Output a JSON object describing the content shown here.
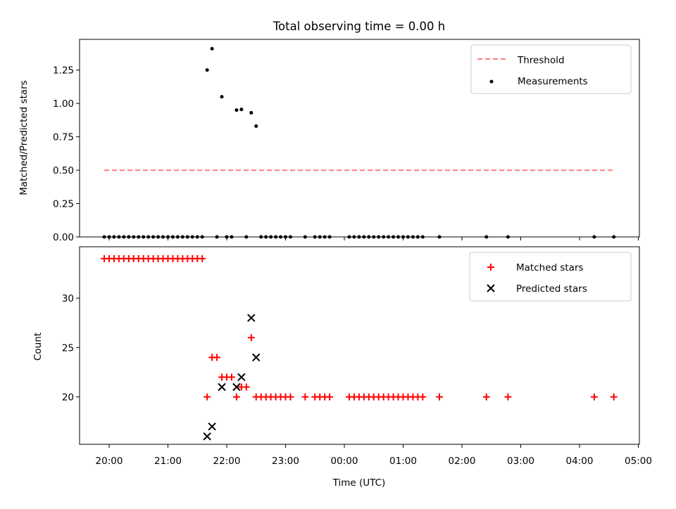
{
  "chart_data": [
    {
      "type": "scatter",
      "title": "Total observing time = 0.00 h",
      "xlabel": "",
      "ylabel": "Matched/Predicted stars",
      "ylim": [
        0,
        1.48
      ],
      "y_ticks": [
        "0.00",
        "0.25",
        "0.50",
        "0.75",
        "1.00",
        "1.25"
      ],
      "legend_position": "top-right",
      "threshold": {
        "name": "Threshold",
        "value": 0.5,
        "x_range": [
          "19:55",
          "04:35"
        ],
        "color": "#ff7f7f"
      },
      "series": [
        {
          "name": "Measurements",
          "color": "#000000",
          "points": [
            [
              "19:55",
              0
            ],
            [
              "20:00",
              0
            ],
            [
              "20:05",
              0
            ],
            [
              "20:10",
              0
            ],
            [
              "20:15",
              0
            ],
            [
              "20:20",
              0
            ],
            [
              "20:25",
              0
            ],
            [
              "20:30",
              0
            ],
            [
              "20:35",
              0
            ],
            [
              "20:40",
              0
            ],
            [
              "20:45",
              0
            ],
            [
              "20:50",
              0
            ],
            [
              "20:55",
              0
            ],
            [
              "21:00",
              0
            ],
            [
              "21:05",
              0
            ],
            [
              "21:10",
              0
            ],
            [
              "21:15",
              0
            ],
            [
              "21:20",
              0
            ],
            [
              "21:25",
              0
            ],
            [
              "21:30",
              0
            ],
            [
              "21:35",
              0
            ],
            [
              "21:40",
              1.25
            ],
            [
              "21:45",
              1.41
            ],
            [
              "21:50",
              0
            ],
            [
              "21:55",
              1.05
            ],
            [
              "22:00",
              0
            ],
            [
              "22:05",
              0
            ],
            [
              "22:10",
              0.95
            ],
            [
              "22:15",
              0.955
            ],
            [
              "22:20",
              0
            ],
            [
              "22:25",
              0.93
            ],
            [
              "22:30",
              0.83
            ],
            [
              "22:35",
              0
            ],
            [
              "22:40",
              0
            ],
            [
              "22:45",
              0
            ],
            [
              "22:50",
              0
            ],
            [
              "22:55",
              0
            ],
            [
              "23:00",
              0
            ],
            [
              "23:05",
              0
            ],
            [
              "23:20",
              0
            ],
            [
              "23:30",
              0
            ],
            [
              "23:35",
              0
            ],
            [
              "23:40",
              0
            ],
            [
              "23:45",
              0
            ],
            [
              "00:05",
              0
            ],
            [
              "00:10",
              0
            ],
            [
              "00:15",
              0
            ],
            [
              "00:20",
              0
            ],
            [
              "00:25",
              0
            ],
            [
              "00:30",
              0
            ],
            [
              "00:35",
              0
            ],
            [
              "00:40",
              0
            ],
            [
              "00:45",
              0
            ],
            [
              "00:50",
              0
            ],
            [
              "00:55",
              0
            ],
            [
              "01:00",
              0
            ],
            [
              "01:05",
              0
            ],
            [
              "01:10",
              0
            ],
            [
              "01:15",
              0
            ],
            [
              "01:20",
              0
            ],
            [
              "01:37",
              0
            ],
            [
              "02:25",
              0
            ],
            [
              "02:47",
              0
            ],
            [
              "04:15",
              0
            ],
            [
              "04:35",
              0
            ]
          ]
        }
      ]
    },
    {
      "type": "scatter",
      "title": "",
      "xlabel": "Time (UTC)",
      "ylabel": "Count",
      "ylim": [
        15.2,
        35.2
      ],
      "y_ticks": [
        "20",
        "25",
        "30"
      ],
      "x_ticks": [
        "20:00",
        "21:00",
        "22:00",
        "23:00",
        "00:00",
        "01:00",
        "02:00",
        "03:00",
        "04:00",
        "05:00"
      ],
      "legend_position": "top-right",
      "series": [
        {
          "name": "Matched stars",
          "marker": "plus",
          "color": "#ff0000",
          "points": [
            [
              "19:55",
              34
            ],
            [
              "20:00",
              34
            ],
            [
              "20:05",
              34
            ],
            [
              "20:10",
              34
            ],
            [
              "20:15",
              34
            ],
            [
              "20:20",
              34
            ],
            [
              "20:25",
              34
            ],
            [
              "20:30",
              34
            ],
            [
              "20:35",
              34
            ],
            [
              "20:40",
              34
            ],
            [
              "20:45",
              34
            ],
            [
              "20:50",
              34
            ],
            [
              "20:55",
              34
            ],
            [
              "21:00",
              34
            ],
            [
              "21:05",
              34
            ],
            [
              "21:10",
              34
            ],
            [
              "21:15",
              34
            ],
            [
              "21:20",
              34
            ],
            [
              "21:25",
              34
            ],
            [
              "21:30",
              34
            ],
            [
              "21:35",
              34
            ],
            [
              "21:40",
              20
            ],
            [
              "21:45",
              24
            ],
            [
              "21:50",
              24
            ],
            [
              "21:55",
              22
            ],
            [
              "22:00",
              22
            ],
            [
              "22:05",
              22
            ],
            [
              "22:10",
              20
            ],
            [
              "22:15",
              21
            ],
            [
              "22:20",
              21
            ],
            [
              "22:25",
              26
            ],
            [
              "22:30",
              20
            ],
            [
              "22:35",
              20
            ],
            [
              "22:40",
              20
            ],
            [
              "22:45",
              20
            ],
            [
              "22:50",
              20
            ],
            [
              "22:55",
              20
            ],
            [
              "23:00",
              20
            ],
            [
              "23:05",
              20
            ],
            [
              "23:20",
              20
            ],
            [
              "23:30",
              20
            ],
            [
              "23:35",
              20
            ],
            [
              "23:40",
              20
            ],
            [
              "23:45",
              20
            ],
            [
              "00:05",
              20
            ],
            [
              "00:10",
              20
            ],
            [
              "00:15",
              20
            ],
            [
              "00:20",
              20
            ],
            [
              "00:25",
              20
            ],
            [
              "00:30",
              20
            ],
            [
              "00:35",
              20
            ],
            [
              "00:40",
              20
            ],
            [
              "00:45",
              20
            ],
            [
              "00:50",
              20
            ],
            [
              "00:55",
              20
            ],
            [
              "01:00",
              20
            ],
            [
              "01:05",
              20
            ],
            [
              "01:10",
              20
            ],
            [
              "01:15",
              20
            ],
            [
              "01:20",
              20
            ],
            [
              "01:37",
              20
            ],
            [
              "02:25",
              20
            ],
            [
              "02:47",
              20
            ],
            [
              "04:15",
              20
            ],
            [
              "04:35",
              20
            ]
          ]
        },
        {
          "name": "Predicted stars",
          "marker": "x",
          "color": "#000000",
          "points": [
            [
              "21:40",
              16
            ],
            [
              "21:45",
              17
            ],
            [
              "21:55",
              21
            ],
            [
              "22:10",
              21
            ],
            [
              "22:15",
              22
            ],
            [
              "22:25",
              28
            ],
            [
              "22:30",
              24
            ]
          ]
        }
      ]
    }
  ]
}
